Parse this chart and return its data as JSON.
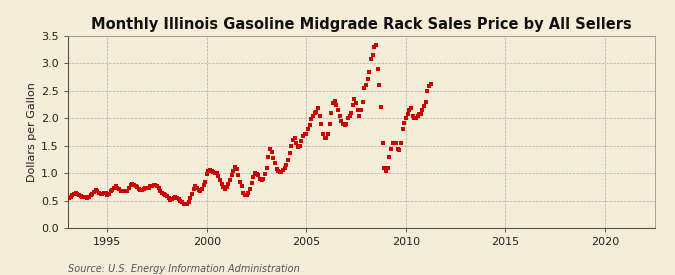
{
  "title": "Monthly Illinois Gasoline Midgrade Rack Sales Price by All Sellers",
  "ylabel": "Dollars per Gallon",
  "source": "Source: U.S. Energy Information Administration",
  "xlim": [
    1993.0,
    2022.5
  ],
  "ylim": [
    0.0,
    3.5
  ],
  "yticks": [
    0.0,
    0.5,
    1.0,
    1.5,
    2.0,
    2.5,
    3.0,
    3.5
  ],
  "xticks": [
    1995,
    2000,
    2005,
    2010,
    2015,
    2020
  ],
  "dot_color": "#cc0000",
  "background_color": "#f5edd8",
  "grid_color": "#aaaaaa",
  "title_fontsize": 10.5,
  "label_fontsize": 8,
  "tick_fontsize": 8,
  "source_fontsize": 7,
  "data": {
    "dates": [
      1993.0,
      1993.083,
      1993.167,
      1993.25,
      1993.333,
      1993.417,
      1993.5,
      1993.583,
      1993.667,
      1993.75,
      1993.833,
      1993.917,
      1994.0,
      1994.083,
      1994.167,
      1994.25,
      1994.333,
      1994.417,
      1994.5,
      1994.583,
      1994.667,
      1994.75,
      1994.833,
      1994.917,
      1995.0,
      1995.083,
      1995.167,
      1995.25,
      1995.333,
      1995.417,
      1995.5,
      1995.583,
      1995.667,
      1995.75,
      1995.833,
      1995.917,
      1996.0,
      1996.083,
      1996.167,
      1996.25,
      1996.333,
      1996.417,
      1996.5,
      1996.583,
      1996.667,
      1996.75,
      1996.833,
      1996.917,
      1997.0,
      1997.083,
      1997.167,
      1997.25,
      1997.333,
      1997.417,
      1997.5,
      1997.583,
      1997.667,
      1997.75,
      1997.833,
      1997.917,
      1998.0,
      1998.083,
      1998.167,
      1998.25,
      1998.333,
      1998.417,
      1998.5,
      1998.583,
      1998.667,
      1998.75,
      1998.833,
      1998.917,
      1999.0,
      1999.083,
      1999.167,
      1999.25,
      1999.333,
      1999.417,
      1999.5,
      1999.583,
      1999.667,
      1999.75,
      1999.833,
      1999.917,
      2000.0,
      2000.083,
      2000.167,
      2000.25,
      2000.333,
      2000.417,
      2000.5,
      2000.583,
      2000.667,
      2000.75,
      2000.833,
      2000.917,
      2001.0,
      2001.083,
      2001.167,
      2001.25,
      2001.333,
      2001.417,
      2001.5,
      2001.583,
      2001.667,
      2001.75,
      2001.833,
      2001.917,
      2002.0,
      2002.083,
      2002.167,
      2002.25,
      2002.333,
      2002.417,
      2002.5,
      2002.583,
      2002.667,
      2002.75,
      2002.833,
      2002.917,
      2003.0,
      2003.083,
      2003.167,
      2003.25,
      2003.333,
      2003.417,
      2003.5,
      2003.583,
      2003.667,
      2003.75,
      2003.833,
      2003.917,
      2004.0,
      2004.083,
      2004.167,
      2004.25,
      2004.333,
      2004.417,
      2004.5,
      2004.583,
      2004.667,
      2004.75,
      2004.833,
      2004.917,
      2005.0,
      2005.083,
      2005.167,
      2005.25,
      2005.333,
      2005.417,
      2005.5,
      2005.583,
      2005.667,
      2005.75,
      2005.833,
      2005.917,
      2006.0,
      2006.083,
      2006.167,
      2006.25,
      2006.333,
      2006.417,
      2006.5,
      2006.583,
      2006.667,
      2006.75,
      2006.833,
      2006.917,
      2007.0,
      2007.083,
      2007.167,
      2007.25,
      2007.333,
      2007.417,
      2007.5,
      2007.583,
      2007.667,
      2007.75,
      2007.833,
      2007.917,
      2008.0,
      2008.083,
      2008.167,
      2008.25,
      2008.333,
      2008.417,
      2008.5,
      2008.583,
      2008.667,
      2008.75,
      2008.833,
      2008.917,
      2009.0,
      2009.083,
      2009.167,
      2009.25,
      2009.333,
      2009.417,
      2009.5,
      2009.583,
      2009.667,
      2009.75,
      2009.833,
      2009.917,
      2010.0,
      2010.083,
      2010.167,
      2010.25,
      2010.333,
      2010.417,
      2010.5,
      2010.583,
      2010.667,
      2010.75,
      2010.833,
      2010.917,
      2011.0,
      2011.083,
      2011.167,
      2011.25
    ],
    "values": [
      0.54,
      0.55,
      0.57,
      0.6,
      0.63,
      0.65,
      0.62,
      0.6,
      0.58,
      0.57,
      0.56,
      0.57,
      0.55,
      0.57,
      0.6,
      0.63,
      0.66,
      0.69,
      0.67,
      0.64,
      0.63,
      0.63,
      0.64,
      0.64,
      0.6,
      0.62,
      0.67,
      0.7,
      0.73,
      0.76,
      0.74,
      0.71,
      0.68,
      0.68,
      0.67,
      0.67,
      0.68,
      0.73,
      0.78,
      0.8,
      0.78,
      0.76,
      0.75,
      0.72,
      0.7,
      0.7,
      0.72,
      0.73,
      0.73,
      0.74,
      0.76,
      0.77,
      0.78,
      0.79,
      0.77,
      0.74,
      0.68,
      0.65,
      0.63,
      0.61,
      0.58,
      0.55,
      0.52,
      0.53,
      0.55,
      0.57,
      0.55,
      0.53,
      0.5,
      0.48,
      0.44,
      0.44,
      0.44,
      0.47,
      0.55,
      0.63,
      0.71,
      0.76,
      0.73,
      0.7,
      0.68,
      0.72,
      0.78,
      0.84,
      0.98,
      1.04,
      1.06,
      1.05,
      1.02,
      1.0,
      1.01,
      0.95,
      0.87,
      0.8,
      0.75,
      0.72,
      0.75,
      0.8,
      0.88,
      0.97,
      1.05,
      1.12,
      1.08,
      0.97,
      0.85,
      0.77,
      0.65,
      0.6,
      0.6,
      0.65,
      0.72,
      0.82,
      0.93,
      1.0,
      0.98,
      0.96,
      0.9,
      0.87,
      0.9,
      0.98,
      1.1,
      1.3,
      1.45,
      1.38,
      1.28,
      1.18,
      1.08,
      1.05,
      1.03,
      1.03,
      1.06,
      1.1,
      1.15,
      1.25,
      1.37,
      1.5,
      1.6,
      1.65,
      1.55,
      1.48,
      1.5,
      1.58,
      1.68,
      1.72,
      1.72,
      1.8,
      1.88,
      1.98,
      2.05,
      2.1,
      2.12,
      2.18,
      2.05,
      1.9,
      1.72,
      1.65,
      1.65,
      1.72,
      1.9,
      2.1,
      2.28,
      2.32,
      2.25,
      2.15,
      2.05,
      1.95,
      1.9,
      1.88,
      1.9,
      2.0,
      2.05,
      2.1,
      2.25,
      2.35,
      2.28,
      2.15,
      2.05,
      2.15,
      2.3,
      2.55,
      2.6,
      2.72,
      2.85,
      3.07,
      3.15,
      3.3,
      3.33,
      2.9,
      2.6,
      2.2,
      1.55,
      1.1,
      1.05,
      1.1,
      1.3,
      1.45,
      1.55,
      1.55,
      1.55,
      1.45,
      1.42,
      1.55,
      1.8,
      1.92,
      2.0,
      2.08,
      2.15,
      2.18,
      2.05,
      2.0,
      2.0,
      2.05,
      2.08,
      2.08,
      2.15,
      2.22,
      2.3,
      2.5,
      2.58,
      2.62
    ]
  }
}
